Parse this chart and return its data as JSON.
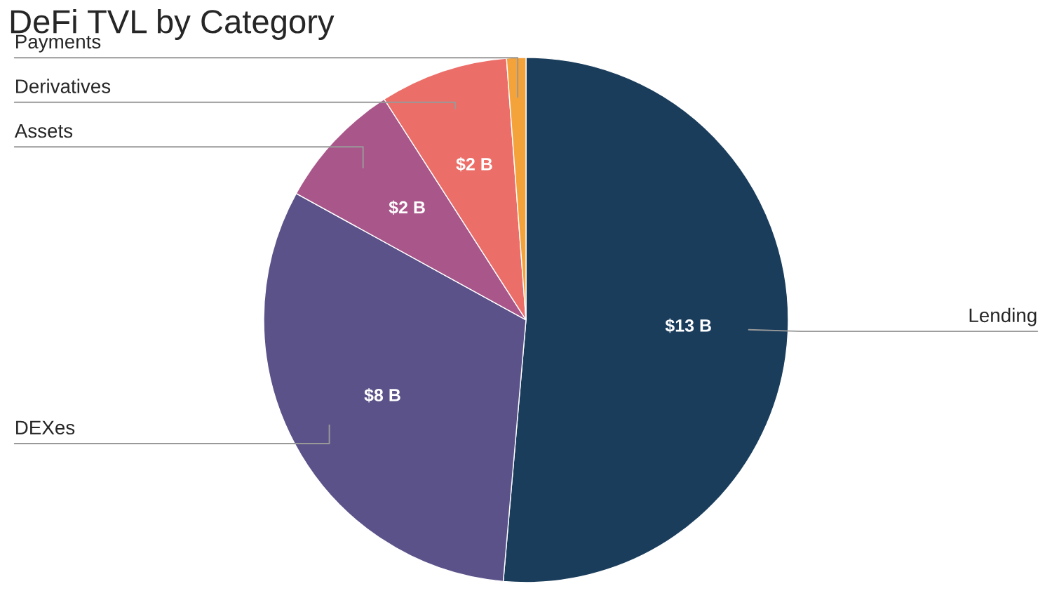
{
  "chart_data": {
    "type": "pie",
    "title": "DeFi TVL by Category",
    "categories": [
      "Lending",
      "DEXes",
      "Assets",
      "Derivatives",
      "Payments"
    ],
    "values": [
      13,
      8,
      2,
      2,
      0.3
    ],
    "value_labels": [
      "$13 B",
      "$8 B",
      "$2 B",
      "$2 B",
      null
    ],
    "colors": [
      "#1a3d5c",
      "#5b5289",
      "#a9568a",
      "#ec6e68",
      "#f4a23a"
    ],
    "legend": false
  }
}
